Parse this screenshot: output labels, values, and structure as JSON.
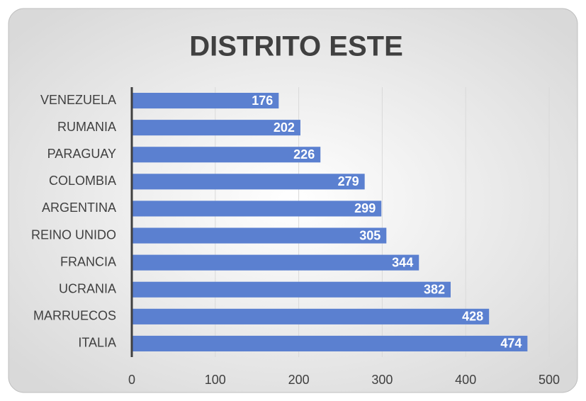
{
  "chart_data": {
    "type": "bar",
    "orientation": "horizontal",
    "title": "DISTRITO ESTE",
    "categories": [
      "VENEZUELA",
      "RUMANIA",
      "PARAGUAY",
      "COLOMBIA",
      "ARGENTINA",
      "REINO UNIDO",
      "FRANCIA",
      "UCRANIA",
      "MARRUECOS",
      "ITALIA"
    ],
    "values": [
      176,
      202,
      226,
      279,
      299,
      305,
      344,
      382,
      428,
      474
    ],
    "color": "#5b80d0",
    "xlim": [
      0,
      500
    ],
    "xticks": [
      0,
      100,
      200,
      300,
      400,
      500
    ],
    "grid": true
  }
}
